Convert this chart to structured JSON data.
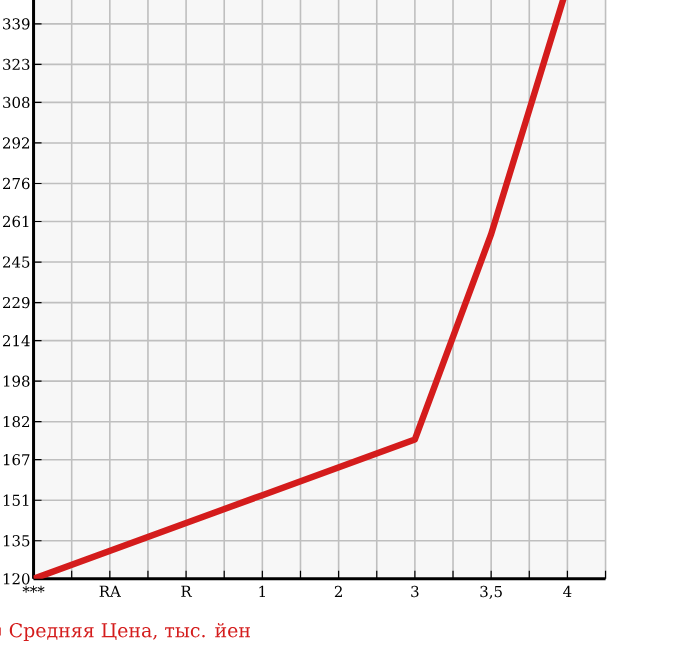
{
  "chart_data": {
    "type": "line",
    "categories": [
      "***",
      "RA",
      "R",
      "1",
      "2",
      "3",
      "3,5",
      "4"
    ],
    "series": [
      {
        "name": "Средняя Цена, тыс. йен",
        "color": "#d41c1c",
        "values": [
          120,
          131,
          142,
          153,
          164,
          175,
          256,
          354
        ]
      }
    ],
    "ylim": [
      120,
      356
    ],
    "yticks": [
      120,
      135,
      151,
      167,
      182,
      198,
      214,
      229,
      245,
      261,
      276,
      292,
      308,
      323,
      339
    ],
    "grid": true,
    "legend": "bottom left",
    "marker": "none",
    "line_style": "solid"
  }
}
